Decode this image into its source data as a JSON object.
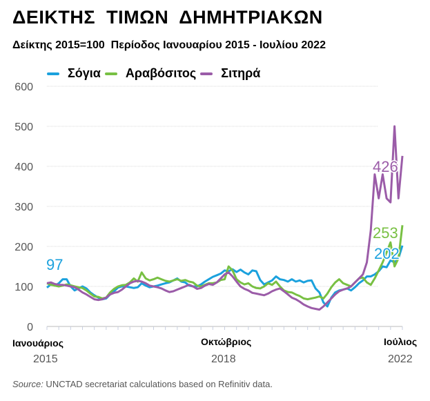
{
  "title": "ΔΕΙΚΤΗΣ  ΤΙΜΩΝ  ΔΗΜΗΤΡΙΑΚΩΝ",
  "subtitle": "Δείκτης 2015=100  Περίοδος Ιανουαρίου 2015 - Ιουλίου 2022",
  "source": {
    "label": "Source:",
    "text": " UNCTAD secretariat calculations based on Refinitiv data."
  },
  "chart_data": {
    "type": "line",
    "title": "ΔΕΙΚΤΗΣ  ΤΙΜΩΝ  ΔΗΜΗΤΡΙΑΚΩΝ",
    "ylim": [
      0,
      600
    ],
    "yticks": [
      "0",
      "100",
      "200",
      "300",
      "400",
      "500",
      "600"
    ],
    "grid": true,
    "legend_position": "top-left",
    "x_start": "2015-01",
    "x_end": "2022-07",
    "x_tick_labels": [
      {
        "month": "Ιανουάριος",
        "year": "2015",
        "index": 0
      },
      {
        "month": "Οκτώβριος",
        "year": "2018",
        "index": 45
      },
      {
        "month": "Ιούλιος",
        "year": "2022",
        "index": 90
      }
    ],
    "series": [
      {
        "name": "Σόγια",
        "color": "#1ba1dd",
        "end_label": "202",
        "start_label": "97",
        "values": [
          97,
          105,
          102,
          108,
          118,
          118,
          100,
          90,
          95,
          100,
          95,
          85,
          78,
          72,
          68,
          70,
          80,
          88,
          97,
          100,
          100,
          98,
          96,
          98,
          108,
          102,
          98,
          100,
          102,
          105,
          108,
          110,
          115,
          120,
          112,
          110,
          102,
          100,
          100,
          105,
          112,
          118,
          124,
          128,
          132,
          140,
          138,
          143,
          136,
          142,
          135,
          130,
          140,
          138,
          116,
          105,
          110,
          115,
          125,
          118,
          116,
          112,
          118,
          112,
          115,
          110,
          114,
          115,
          95,
          85,
          60,
          50,
          72,
          85,
          90,
          92,
          95,
          90,
          98,
          108,
          115,
          125,
          125,
          130,
          138,
          150,
          148,
          165,
          160,
          170,
          202
        ]
      },
      {
        "name": "Αραβόσιτος",
        "color": "#78c043",
        "end_label": "253",
        "values": [
          108,
          104,
          102,
          100,
          102,
          105,
          103,
          100,
          98,
          96,
          90,
          82,
          75,
          74,
          70,
          72,
          85,
          94,
          100,
          103,
          104,
          110,
          120,
          112,
          135,
          120,
          115,
          118,
          122,
          118,
          114,
          112,
          115,
          118,
          114,
          116,
          112,
          110,
          102,
          100,
          104,
          108,
          108,
          110,
          116,
          118,
          150,
          140,
          118,
          110,
          105,
          108,
          100,
          96,
          95,
          100,
          108,
          104,
          112,
          100,
          90,
          86,
          85,
          80,
          76,
          70,
          68,
          70,
          72,
          75,
          70,
          82,
          98,
          110,
          118,
          108,
          104,
          100,
          110,
          120,
          122,
          110,
          104,
          120,
          140,
          160,
          185,
          210,
          150,
          170,
          253
        ]
      },
      {
        "name": "Σιτηρά",
        "color": "#9b5ca8",
        "end_label": "426",
        "values": [
          108,
          110,
          106,
          104,
          104,
          102,
          100,
          98,
          92,
          85,
          80,
          74,
          68,
          66,
          68,
          72,
          80,
          84,
          86,
          92,
          100,
          108,
          112,
          114,
          112,
          108,
          102,
          100,
          98,
          95,
          90,
          86,
          88,
          92,
          96,
          100,
          104,
          100,
          94,
          96,
          102,
          106,
          104,
          110,
          120,
          130,
          135,
          125,
          112,
          100,
          94,
          90,
          84,
          82,
          80,
          78,
          82,
          88,
          92,
          95,
          88,
          80,
          72,
          68,
          62,
          55,
          50,
          46,
          44,
          42,
          50,
          60,
          70,
          80,
          88,
          92,
          95,
          100,
          110,
          120,
          130,
          160,
          240,
          380,
          320,
          380,
          320,
          310,
          500,
          320,
          426
        ]
      }
    ]
  }
}
